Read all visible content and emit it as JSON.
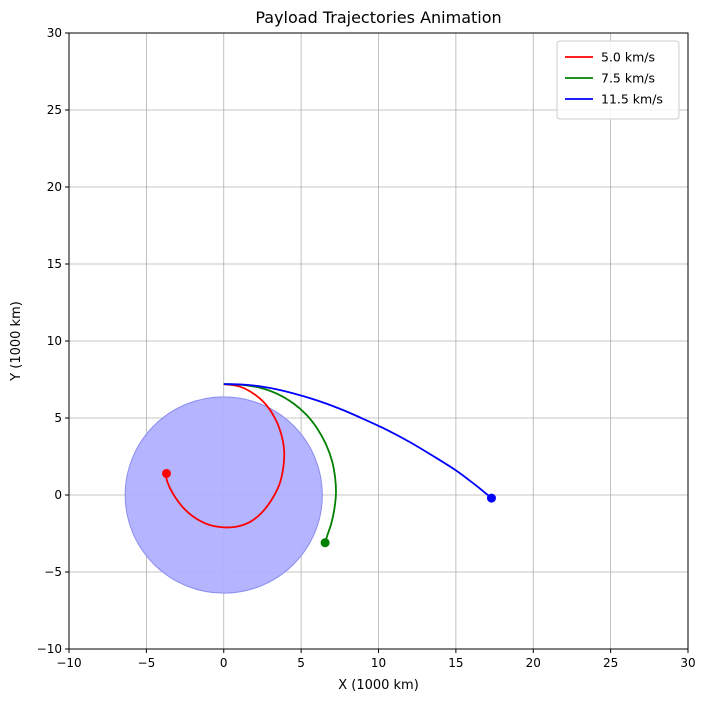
{
  "chart_data": {
    "type": "line",
    "title": "Payload Trajectories Animation",
    "xlabel": "X (1000 km)",
    "ylabel": "Y (1000 km)",
    "xlim": [
      -10,
      30
    ],
    "ylim": [
      -10,
      30
    ],
    "xticks": [
      -10,
      -5,
      0,
      5,
      10,
      15,
      20,
      25,
      30
    ],
    "yticks": [
      -10,
      -5,
      0,
      5,
      10,
      15,
      20,
      25,
      30
    ],
    "xtick_labels": [
      "−10",
      "−5",
      "0",
      "5",
      "10",
      "15",
      "20",
      "25",
      "30"
    ],
    "ytick_labels": [
      "−10",
      "−5",
      "0",
      "5",
      "10",
      "15",
      "20",
      "25",
      "30"
    ],
    "grid": true,
    "legend_position": "top-right",
    "planet": {
      "center": [
        0,
        0
      ],
      "radius": 6.371,
      "color": "#b0b0ff",
      "edge_color": "#8c8cf0"
    },
    "series": [
      {
        "name": "5.0 km/s",
        "color": "#ff0000",
        "points": [
          [
            0,
            7.2
          ],
          [
            1.0,
            7.05
          ],
          [
            1.9,
            6.6
          ],
          [
            2.7,
            5.9
          ],
          [
            3.3,
            5.0
          ],
          [
            3.7,
            4.0
          ],
          [
            3.9,
            2.9
          ],
          [
            3.85,
            1.8
          ],
          [
            3.6,
            0.7
          ],
          [
            3.1,
            -0.3
          ],
          [
            2.45,
            -1.15
          ],
          [
            1.7,
            -1.75
          ],
          [
            0.85,
            -2.05
          ],
          [
            0,
            -2.1
          ],
          [
            -0.9,
            -1.95
          ],
          [
            -1.75,
            -1.55
          ],
          [
            -2.5,
            -0.95
          ],
          [
            -3.1,
            -0.2
          ],
          [
            -3.5,
            0.5
          ],
          [
            -3.7,
            1.05
          ],
          [
            -3.7,
            1.4
          ]
        ],
        "endpoint": [
          -3.7,
          1.4
        ]
      },
      {
        "name": "7.5 km/s",
        "color": "#008000",
        "points": [
          [
            0,
            7.2
          ],
          [
            1.2,
            7.15
          ],
          [
            2.4,
            6.95
          ],
          [
            3.5,
            6.55
          ],
          [
            4.5,
            5.95
          ],
          [
            5.35,
            5.2
          ],
          [
            6.05,
            4.3
          ],
          [
            6.6,
            3.3
          ],
          [
            7.0,
            2.2
          ],
          [
            7.2,
            1.1
          ],
          [
            7.25,
            0.1
          ],
          [
            7.15,
            -0.9
          ],
          [
            6.95,
            -1.85
          ],
          [
            6.7,
            -2.6
          ],
          [
            6.55,
            -3.1
          ]
        ],
        "endpoint": [
          6.55,
          -3.1
        ]
      },
      {
        "name": "11.5 km/s",
        "color": "#0000ff",
        "points": [
          [
            0,
            7.2
          ],
          [
            1.5,
            7.15
          ],
          [
            3.0,
            6.95
          ],
          [
            4.5,
            6.6
          ],
          [
            6.0,
            6.15
          ],
          [
            7.5,
            5.6
          ],
          [
            9.0,
            4.95
          ],
          [
            10.5,
            4.25
          ],
          [
            12.0,
            3.45
          ],
          [
            13.5,
            2.55
          ],
          [
            15.0,
            1.6
          ],
          [
            16.2,
            0.7
          ],
          [
            17.0,
            0.05
          ],
          [
            17.3,
            -0.2
          ]
        ],
        "endpoint": [
          17.3,
          -0.2
        ]
      }
    ]
  }
}
